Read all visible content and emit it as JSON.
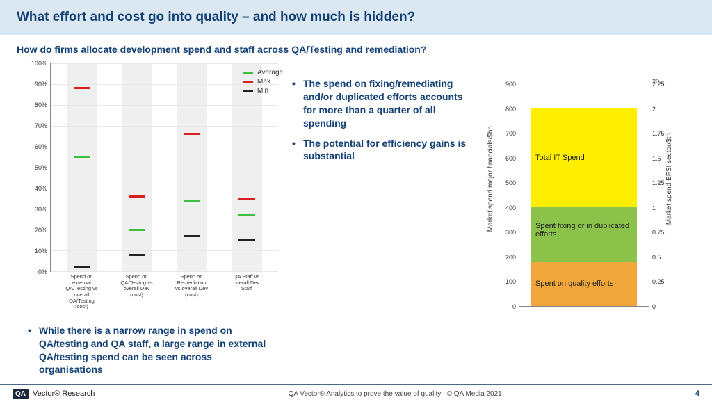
{
  "title": "What effort and cost go into quality – and how much is hidden?",
  "subtitle": "How do firms allocate development spend and staff across QA/Testing and remediation?",
  "range_chart": {
    "type": "range-marker",
    "ylim": [
      0,
      100
    ],
    "ytick_step": 10,
    "y_suffix": "%",
    "background_color": "#efefef",
    "grid_color": "#e8e8e8",
    "marker_thickness": 3,
    "legend": [
      {
        "label": "Average",
        "color": "#3fbf3f"
      },
      {
        "label": "Max",
        "color": "#d62020"
      },
      {
        "label": "Min",
        "color": "#222222"
      }
    ],
    "categories": [
      {
        "label": "Spend on external QA/Testing vs overall QA/Testing (cost)",
        "avg": 55,
        "max": 88,
        "min": 2
      },
      {
        "label": "Spend on QA/Testing vs overall Dev (cost)",
        "avg": 20,
        "max": 36,
        "min": 8
      },
      {
        "label": "Spend on Remediation vs overall Dev (cost)",
        "avg": 34,
        "max": 66,
        "min": 17
      },
      {
        "label": "QA Staff vs overall Dev Staff",
        "avg": 27,
        "max": 35,
        "min": 15
      }
    ]
  },
  "mid_bullets": [
    "The spend on fixing/remediating and/or duplicated efforts accounts for more than a quarter of all spending",
    "The potential for efficiency gains is substantial"
  ],
  "left_bullet": "While there is a narrow range in spend on QA/testing and QA staff, a large range in external QA/testing spend can be seen across organisations",
  "stacked_chart": {
    "type": "stacked-bar",
    "left_axis": {
      "label": "Market spend major financials/$bn",
      "ticks": [
        0,
        100,
        200,
        300,
        400,
        500,
        600,
        700,
        800,
        900
      ],
      "break_symbol": true
    },
    "right_axis": {
      "label": "Market spend BFSI sector/$tn",
      "ticks": [
        0,
        0.25,
        0.5,
        0.75,
        1,
        1.25,
        1.5,
        1.75,
        2,
        2.25
      ],
      "top_tick": 20,
      "break_symbol": true
    },
    "total_height_value": 800,
    "segments": [
      {
        "label": "Spent on quality efforts",
        "from": 0,
        "to": 180,
        "color": "#f0a63a"
      },
      {
        "label": "Spent fixing or in duplicated efforts",
        "from": 180,
        "to": 400,
        "color": "#8bc34a"
      },
      {
        "label": "Total IT Spend",
        "from": 400,
        "to": 800,
        "color": "#ffee00"
      }
    ]
  },
  "footer": {
    "logo_badge": "QA",
    "logo_text": "Vector® Research",
    "center": "QA Vector® Analytics to prove the value of quality I  © QA Media 2021",
    "page": "4"
  },
  "colors": {
    "title_bg": "#dbe8f2",
    "brand_text": "#124075"
  }
}
